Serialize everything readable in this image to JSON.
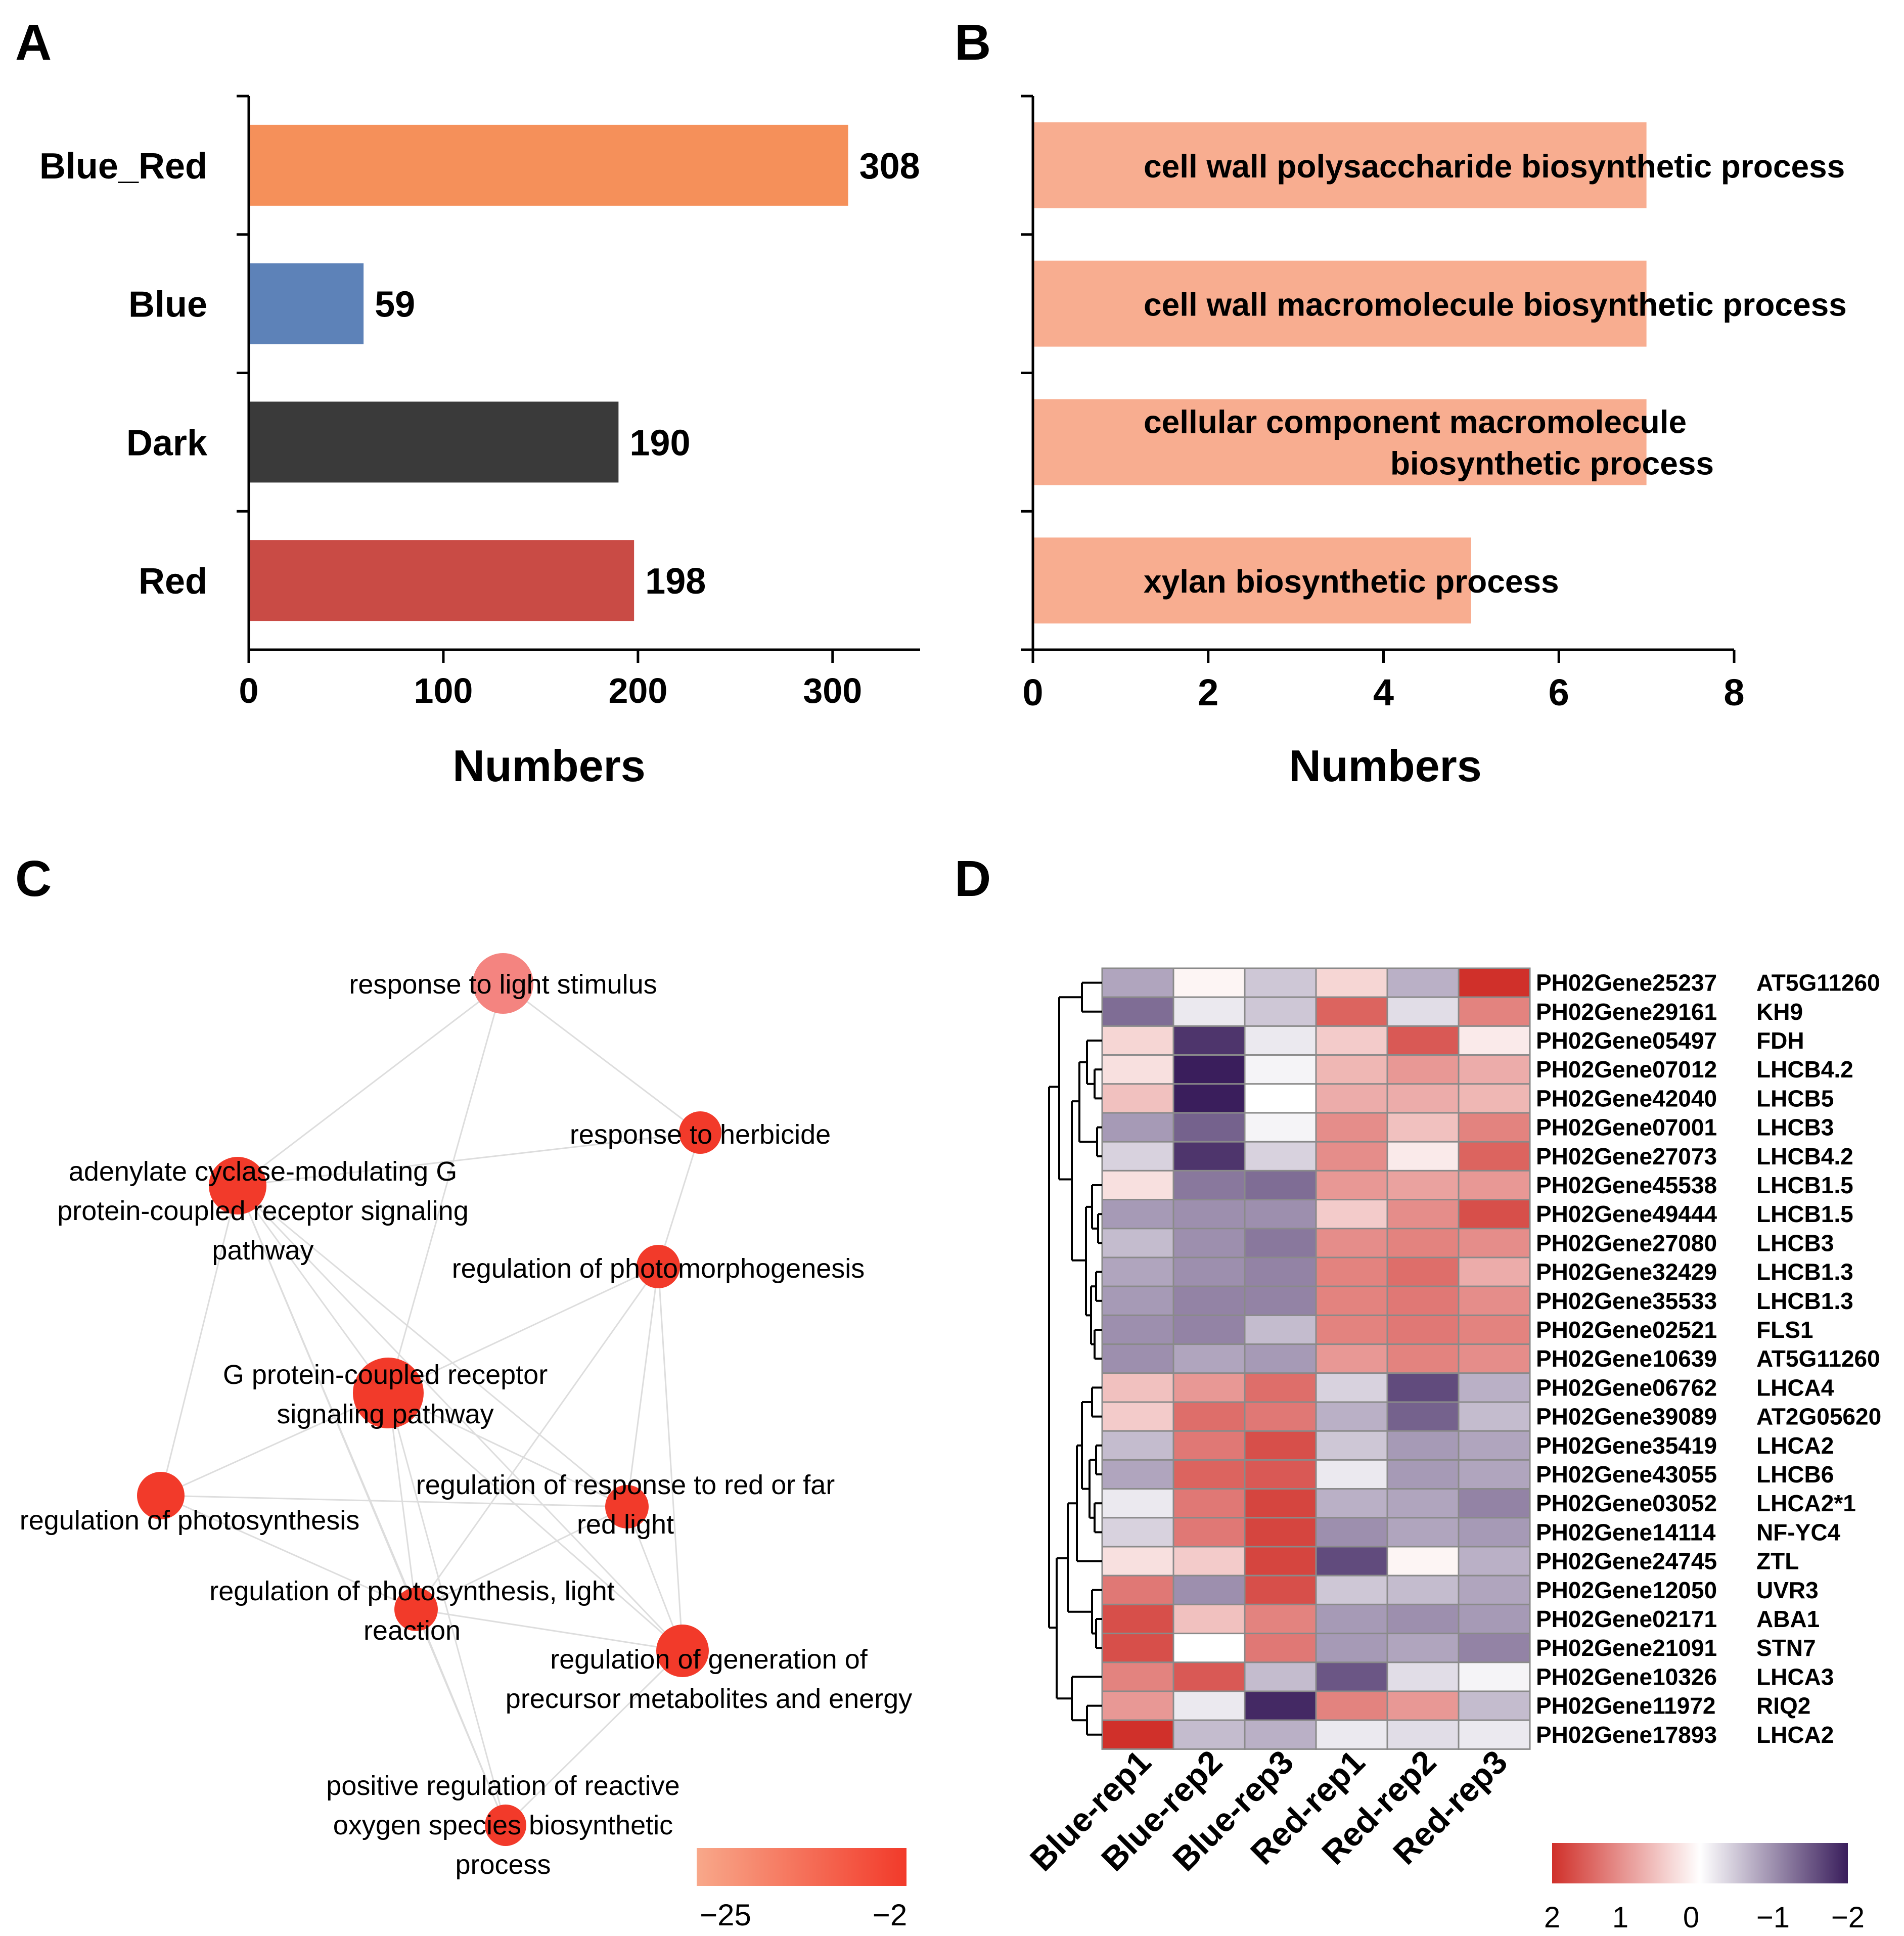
{
  "panel_letters": [
    "A",
    "B",
    "C",
    "D"
  ],
  "colors": {
    "blue_red": "#F5905A",
    "blue": "#5D82B8",
    "dark": "#3A3A3A",
    "red": "#C94B45",
    "go_bar": "#F8AD90",
    "network_node": "#F23A2A",
    "network_node_light": "#F48480",
    "edge": "#dddddd"
  },
  "chart_data": [
    {
      "panel": "A",
      "type": "bar",
      "orientation": "horizontal",
      "categories": [
        "Blue_Red",
        "Blue",
        "Dark",
        "Red"
      ],
      "values": [
        308,
        59,
        190,
        198
      ],
      "value_labels": [
        "308",
        "59",
        "190",
        "198"
      ],
      "xlabel": "Numbers",
      "ylabel": "",
      "xlim": [
        0,
        345
      ],
      "xticks": [
        0,
        100,
        200,
        300
      ],
      "xtick_labels": [
        "0",
        "100",
        "200",
        "300"
      ],
      "grid": false
    },
    {
      "panel": "B",
      "type": "bar",
      "orientation": "horizontal",
      "categories": [
        "cell wall polysaccharide biosynthetic process",
        "cell wall macromolecule biosynthetic process",
        "cellular component macromolecule biosynthetic process",
        "xylan biosynthetic process"
      ],
      "category_lines": [
        [
          "cell wall polysaccharide biosynthetic process"
        ],
        [
          "cell wall macromolecule biosynthetic process"
        ],
        [
          "cellular component macromolecule",
          "biosynthetic process"
        ],
        [
          "xylan biosynthetic process"
        ]
      ],
      "values": [
        7,
        7,
        7,
        5
      ],
      "xlabel": "Numbers",
      "xlim": [
        0,
        8
      ],
      "xticks": [
        0,
        2,
        4,
        6,
        8
      ],
      "xtick_labels": [
        "0",
        "2",
        "4",
        "6",
        "8"
      ],
      "grid": false
    },
    {
      "panel": "C",
      "type": "network",
      "nodes": [
        {
          "id": "light",
          "label_lines": [
            "response to light stimulus"
          ],
          "value": -25,
          "size": 1.0
        },
        {
          "id": "herb",
          "label_lines": [
            "response to herbicide"
          ],
          "value": -2,
          "size": 0.7
        },
        {
          "id": "adcy",
          "label_lines": [
            "adenylate cyclase-modulating G",
            "protein-coupled receptor signaling",
            "pathway"
          ],
          "value": -2,
          "size": 0.95
        },
        {
          "id": "photomorph",
          "label_lines": [
            "regulation of photomorphogenesis"
          ],
          "value": -2,
          "size": 0.72
        },
        {
          "id": "gpcr",
          "label_lines": [
            "G protein-coupled receptor",
            "signaling pathway"
          ],
          "value": -2,
          "size": 1.2
        },
        {
          "id": "photosyn",
          "label_lines": [
            "regulation of photosynthesis"
          ],
          "value": -2,
          "size": 0.78
        },
        {
          "id": "redfar",
          "label_lines": [
            "regulation of response to red or far",
            "red light"
          ],
          "value": -2,
          "size": 0.72
        },
        {
          "id": "lightrxn",
          "label_lines": [
            "regulation of photosynthesis, light",
            "reaction"
          ],
          "value": -2,
          "size": 0.72
        },
        {
          "id": "precursor",
          "label_lines": [
            "regulation of generation of",
            "precursor metabolites and energy"
          ],
          "value": -2,
          "size": 0.88
        },
        {
          "id": "ros",
          "label_lines": [
            "positive regulation of reactive",
            "oxygen species biosynthetic",
            "process"
          ],
          "value": -2,
          "size": 0.68
        }
      ],
      "edges": [
        [
          "light",
          "adcy"
        ],
        [
          "light",
          "herb"
        ],
        [
          "light",
          "gpcr"
        ],
        [
          "herb",
          "adcy"
        ],
        [
          "herb",
          "photomorph"
        ],
        [
          "adcy",
          "gpcr"
        ],
        [
          "adcy",
          "photosyn"
        ],
        [
          "adcy",
          "lightrxn"
        ],
        [
          "adcy",
          "precursor"
        ],
        [
          "adcy",
          "ros"
        ],
        [
          "adcy",
          "redfar"
        ],
        [
          "photomorph",
          "gpcr"
        ],
        [
          "photomorph",
          "redfar"
        ],
        [
          "photomorph",
          "precursor"
        ],
        [
          "photomorph",
          "lightrxn"
        ],
        [
          "gpcr",
          "photosyn"
        ],
        [
          "gpcr",
          "redfar"
        ],
        [
          "gpcr",
          "lightrxn"
        ],
        [
          "gpcr",
          "precursor"
        ],
        [
          "gpcr",
          "ros"
        ],
        [
          "photosyn",
          "lightrxn"
        ],
        [
          "photosyn",
          "redfar"
        ],
        [
          "lightrxn",
          "precursor"
        ],
        [
          "lightrxn",
          "ros"
        ],
        [
          "lightrxn",
          "redfar"
        ],
        [
          "redfar",
          "precursor"
        ],
        [
          "precursor",
          "ros"
        ]
      ],
      "colorbar": {
        "min_label": "−25",
        "max_label": "−2",
        "min_color": "#F8A88A",
        "max_color": "#F23A2A"
      }
    },
    {
      "panel": "D",
      "type": "heatmap",
      "columns": [
        "Blue-rep1",
        "Blue-rep2",
        "Blue-rep3",
        "Red-rep1",
        "Red-rep2",
        "Red-rep3"
      ],
      "rows": [
        {
          "gene": "PH02Gene25237",
          "symbol": "AT5G11260",
          "values": [
            -0.8,
            0.1,
            -0.5,
            0.4,
            -0.7,
            2.0
          ]
        },
        {
          "gene": "PH02Gene29161",
          "symbol": "KH9",
          "values": [
            -1.3,
            -0.2,
            -0.5,
            1.5,
            -0.3,
            1.2
          ]
        },
        {
          "gene": "PH02Gene05497",
          "symbol": "FDH",
          "values": [
            0.4,
            -1.8,
            -0.2,
            0.5,
            1.6,
            0.2
          ]
        },
        {
          "gene": "PH02Gene07012",
          "symbol": "LHCB4.2",
          "values": [
            0.3,
            -2.0,
            -0.1,
            0.7,
            1.0,
            0.8
          ]
        },
        {
          "gene": "PH02Gene42040",
          "symbol": "LHCB5",
          "values": [
            0.6,
            -2.0,
            0.0,
            0.8,
            0.8,
            0.7
          ]
        },
        {
          "gene": "PH02Gene07001",
          "symbol": "LHCB3",
          "values": [
            -0.9,
            -1.4,
            -0.1,
            1.1,
            0.6,
            1.2
          ]
        },
        {
          "gene": "PH02Gene27073",
          "symbol": "LHCB4.2",
          "values": [
            -0.4,
            -1.8,
            -0.4,
            1.1,
            0.2,
            1.5
          ]
        },
        {
          "gene": "PH02Gene45538",
          "symbol": "LHCB1.5",
          "values": [
            0.3,
            -1.2,
            -1.3,
            1.0,
            0.9,
            1.0
          ]
        },
        {
          "gene": "PH02Gene49444",
          "symbol": "LHCB1.5",
          "values": [
            -0.9,
            -1.0,
            -1.0,
            0.5,
            1.1,
            1.7
          ]
        },
        {
          "gene": "PH02Gene27080",
          "symbol": "LHCB3",
          "values": [
            -0.6,
            -1.0,
            -1.2,
            1.1,
            1.2,
            1.1
          ]
        },
        {
          "gene": "PH02Gene32429",
          "symbol": "LHCB1.3",
          "values": [
            -0.8,
            -1.0,
            -1.1,
            1.2,
            1.4,
            0.8
          ]
        },
        {
          "gene": "PH02Gene35533",
          "symbol": "LHCB1.3",
          "values": [
            -0.9,
            -1.1,
            -1.1,
            1.2,
            1.3,
            1.1
          ]
        },
        {
          "gene": "PH02Gene02521",
          "symbol": "FLS1",
          "values": [
            -1.0,
            -1.1,
            -0.6,
            1.2,
            1.3,
            1.2
          ]
        },
        {
          "gene": "PH02Gene10639",
          "symbol": "AT5G11260",
          "values": [
            -1.0,
            -0.8,
            -0.9,
            1.0,
            1.2,
            1.1
          ]
        },
        {
          "gene": "PH02Gene06762",
          "symbol": "LHCA4",
          "values": [
            0.6,
            1.0,
            1.4,
            -0.4,
            -1.6,
            -0.7
          ]
        },
        {
          "gene": "PH02Gene39089",
          "symbol": "AT2G05620",
          "values": [
            0.5,
            1.4,
            1.3,
            -0.7,
            -1.4,
            -0.6
          ]
        },
        {
          "gene": "PH02Gene35419",
          "symbol": "LHCA2",
          "values": [
            -0.6,
            1.3,
            1.7,
            -0.5,
            -0.9,
            -0.8
          ]
        },
        {
          "gene": "PH02Gene43055",
          "symbol": "LHCB6",
          "values": [
            -0.8,
            1.5,
            1.6,
            -0.2,
            -0.9,
            -0.8
          ]
        },
        {
          "gene": "PH02Gene03052",
          "symbol": "LHCA2*1",
          "values": [
            -0.2,
            1.3,
            1.8,
            -0.7,
            -0.8,
            -1.1
          ]
        },
        {
          "gene": "PH02Gene14114",
          "symbol": "NF-YC4",
          "values": [
            -0.4,
            1.3,
            1.8,
            -1.0,
            -0.8,
            -0.9
          ]
        },
        {
          "gene": "PH02Gene24745",
          "symbol": "ZTL",
          "values": [
            0.3,
            0.5,
            1.8,
            -1.6,
            0.1,
            -0.7
          ]
        },
        {
          "gene": "PH02Gene12050",
          "symbol": "UVR3",
          "values": [
            1.3,
            -1.0,
            1.7,
            -0.5,
            -0.6,
            -0.8
          ]
        },
        {
          "gene": "PH02Gene02171",
          "symbol": "ABA1",
          "values": [
            1.7,
            0.6,
            1.2,
            -0.9,
            -1.0,
            -0.9
          ]
        },
        {
          "gene": "PH02Gene21091",
          "symbol": "STN7",
          "values": [
            1.7,
            0.0,
            1.3,
            -0.9,
            -0.8,
            -1.1
          ]
        },
        {
          "gene": "PH02Gene10326",
          "symbol": "LHCA3",
          "values": [
            1.2,
            1.6,
            -0.6,
            -1.5,
            -0.3,
            -0.1
          ]
        },
        {
          "gene": "PH02Gene11972",
          "symbol": "RIQ2",
          "values": [
            1.0,
            -0.2,
            -1.9,
            1.2,
            1.0,
            -0.6
          ]
        },
        {
          "gene": "PH02Gene17893",
          "symbol": "LHCA2",
          "values": [
            2.0,
            -0.6,
            -0.7,
            -0.2,
            -0.3,
            -0.2
          ]
        }
      ],
      "colorbar": {
        "ticks": [
          "2",
          "1",
          "0",
          "−1",
          "−2"
        ],
        "high_color": "#D0302A",
        "mid_color": "#FFFFFF",
        "low_color": "#3A1E5C"
      }
    }
  ]
}
